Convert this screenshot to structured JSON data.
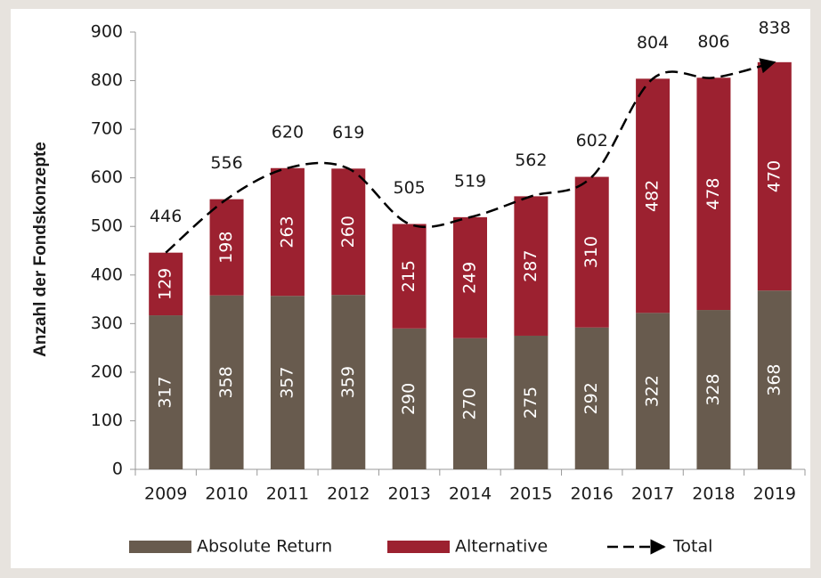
{
  "chart_data": {
    "type": "bar",
    "stacked": true,
    "ylabel": "Anzahl der Fondskonzepte",
    "categories": [
      "2009",
      "2010",
      "2011",
      "2012",
      "2013",
      "2014",
      "2015",
      "2016",
      "2017",
      "2018",
      "2019"
    ],
    "series": [
      {
        "name": "Absolute Return",
        "color": "#685b4e",
        "values": [
          317,
          358,
          357,
          359,
          290,
          270,
          275,
          292,
          322,
          328,
          368
        ]
      },
      {
        "name": "Alternative",
        "color": "#9c2130",
        "values": [
          129,
          198,
          263,
          260,
          215,
          249,
          287,
          310,
          482,
          478,
          470
        ]
      },
      {
        "name": "Total",
        "type": "line",
        "color": "#000000",
        "values": [
          446,
          556,
          620,
          619,
          505,
          519,
          562,
          602,
          804,
          806,
          838
        ]
      }
    ],
    "ylim": [
      0,
      900
    ],
    "yticks": [
      0,
      100,
      200,
      300,
      400,
      500,
      600,
      700,
      800,
      900
    ],
    "legend": "bottom"
  }
}
